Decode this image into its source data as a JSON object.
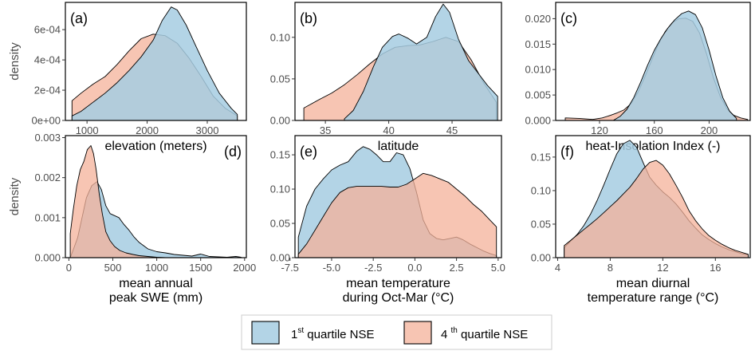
{
  "colors": {
    "q1": "#a6cde2",
    "q4": "#f4b29a",
    "q1_alpha": 0.85,
    "q4_alpha": 0.75,
    "frame": "#000000"
  },
  "legend": {
    "items": [
      {
        "key": "q1",
        "sup": "st",
        "pre": "1",
        "post": " quartile NSE"
      },
      {
        "key": "q4",
        "sup": "th",
        "pre": "4 ",
        "post": " quartile NSE"
      }
    ],
    "placement": "bottom-center"
  },
  "chart_data": [
    {
      "type": "area",
      "panel": "(a)",
      "xlabel": [
        "elevation (meters)"
      ],
      "ylabel": "density",
      "xlim": [
        640,
        3650
      ],
      "ylim": [
        0,
        0.00078
      ],
      "xticks": [
        1000,
        2000,
        3000
      ],
      "xticklabels": [
        "1000",
        "2000",
        "3000"
      ],
      "yticks": [
        0,
        0.0002,
        0.0004,
        0.0006
      ],
      "yticklabels": [
        "0e+00",
        "2e-04",
        "4e-04",
        "6e-04"
      ],
      "series": [
        {
          "key": "q4",
          "x": [
            750,
            900,
            1100,
            1300,
            1500,
            1700,
            1900,
            2100,
            2300,
            2500,
            2700,
            2900,
            3100,
            3300,
            3500
          ],
          "y": [
            0.00013,
            0.00018,
            0.00024,
            0.00029,
            0.00037,
            0.00046,
            0.00054,
            0.00057,
            0.00056,
            0.00051,
            0.00041,
            0.00029,
            0.00016,
            8e-05,
            3e-05
          ]
        },
        {
          "key": "q1",
          "x": [
            750,
            900,
            1100,
            1300,
            1500,
            1700,
            1900,
            2100,
            2250,
            2400,
            2500,
            2650,
            2800,
            3000,
            3200,
            3400,
            3500
          ],
          "y": [
            3e-05,
            6e-05,
            0.00012,
            0.00018,
            0.00025,
            0.00033,
            0.00042,
            0.00053,
            0.00066,
            0.00075,
            0.00073,
            0.00063,
            0.0005,
            0.00033,
            0.00018,
            8e-05,
            4e-05
          ]
        }
      ]
    },
    {
      "type": "area",
      "panel": "(b)",
      "xlabel": [
        "latitude"
      ],
      "ylabel": "",
      "xlim": [
        32.6,
        48.9
      ],
      "ylim": [
        0,
        0.142
      ],
      "xticks": [
        35,
        40,
        45
      ],
      "xticklabels": [
        "35",
        "40",
        "45"
      ],
      "yticks": [
        0,
        0.05,
        0.1
      ],
      "yticklabels": [
        "0.00",
        "0.05",
        "0.10"
      ],
      "series": [
        {
          "key": "q4",
          "x": [
            33.3,
            34.5,
            35.5,
            36.5,
            37.5,
            38.5,
            39.5,
            40.5,
            41.5,
            42.5,
            43.5,
            44.5,
            45.5,
            46.5,
            47.5,
            48.5
          ],
          "y": [
            0.015,
            0.025,
            0.033,
            0.043,
            0.055,
            0.068,
            0.08,
            0.088,
            0.09,
            0.091,
            0.095,
            0.1,
            0.095,
            0.073,
            0.045,
            0.022
          ]
        },
        {
          "key": "q1",
          "x": [
            36.5,
            37.2,
            38,
            38.8,
            39.5,
            40.3,
            40.8,
            41.5,
            42.2,
            43,
            43.7,
            44.3,
            44.8,
            45.5,
            46.3,
            47,
            47.8,
            48.6
          ],
          "y": [
            0.002,
            0.012,
            0.035,
            0.065,
            0.088,
            0.101,
            0.104,
            0.099,
            0.092,
            0.1,
            0.125,
            0.14,
            0.13,
            0.098,
            0.072,
            0.058,
            0.042,
            0.029
          ]
        }
      ]
    },
    {
      "type": "area",
      "panel": "(c)",
      "xlabel": [
        "heat-Insolation Index (-)"
      ],
      "ylabel": "",
      "xlim": [
        88,
        230
      ],
      "ylim": [
        0,
        0.0232
      ],
      "xticks": [
        120,
        160,
        200
      ],
      "xticklabels": [
        "120",
        "160",
        "200"
      ],
      "yticks": [
        0,
        0.005,
        0.01,
        0.015,
        0.02
      ],
      "yticklabels": [
        "0.000",
        "0.005",
        "0.010",
        "0.015",
        "0.020"
      ],
      "series": [
        {
          "key": "q4",
          "x": [
            95,
            105,
            115,
            122,
            128,
            133,
            138,
            143,
            148,
            153,
            158,
            163,
            168,
            173,
            178,
            183,
            188,
            193,
            198,
            203,
            208,
            213,
            218,
            223,
            228
          ],
          "y": [
            0.0005,
            0.0004,
            0.0002,
            0.0005,
            0.001,
            0.0015,
            0.0021,
            0.0033,
            0.0055,
            0.0085,
            0.0118,
            0.015,
            0.0175,
            0.0192,
            0.02,
            0.0201,
            0.0195,
            0.0172,
            0.0132,
            0.0085,
            0.0048,
            0.0023,
            0.001,
            0.0005,
            0.0002
          ]
        },
        {
          "key": "q1",
          "x": [
            130,
            135,
            140,
            145,
            150,
            155,
            160,
            165,
            170,
            175,
            180,
            185,
            190,
            195,
            200,
            205,
            210,
            215,
            220
          ],
          "y": [
            0,
            0.0008,
            0.0022,
            0.0045,
            0.0075,
            0.0108,
            0.0138,
            0.0162,
            0.0182,
            0.0198,
            0.021,
            0.0215,
            0.0208,
            0.0182,
            0.0138,
            0.0088,
            0.0045,
            0.0018,
            0.0004
          ]
        }
      ]
    },
    {
      "type": "area",
      "panel": "(d)",
      "xlabel": [
        "mean annual",
        "peak SWE  (mm)"
      ],
      "ylabel": "density",
      "xlim": [
        -40,
        2020
      ],
      "ylim": [
        0,
        0.00305
      ],
      "xticks": [
        0,
        500,
        1000,
        1500,
        2000
      ],
      "xticklabels": [
        "0",
        "500",
        "1000",
        "1500",
        "2000"
      ],
      "yticks": [
        0,
        0.001,
        0.002,
        0.003
      ],
      "yticklabels": [
        "0.000",
        "0.001",
        "0.002",
        "0.003"
      ],
      "series": [
        {
          "key": "q1",
          "x": [
            15,
            50,
            100,
            150,
            200,
            260,
            320,
            370,
            420,
            470,
            520,
            570,
            620,
            680,
            740,
            800,
            900,
            1000,
            1100,
            1200,
            1300,
            1400,
            1500,
            1600,
            1700,
            1800,
            1900,
            1960
          ],
          "y": [
            0,
            0.0002,
            0.0005,
            0.001,
            0.0015,
            0.0018,
            0.0019,
            0.0017,
            0.0013,
            0.0011,
            0.00105,
            0.001,
            0.00085,
            0.0007,
            0.00052,
            0.00038,
            0.00022,
            0.00015,
            0.00012,
            8e-05,
            6e-05,
            4e-05,
            9e-05,
            3e-05,
            2e-05,
            1e-05,
            3e-05,
            1e-05
          ]
        },
        {
          "key": "q4",
          "x": [
            15,
            50,
            90,
            130,
            170,
            210,
            250,
            280,
            310,
            345,
            380,
            420,
            470,
            520,
            580,
            650,
            730,
            800,
            900,
            1000,
            1100
          ],
          "y": [
            0.0006,
            0.0012,
            0.0018,
            0.0022,
            0.0024,
            0.0027,
            0.0028,
            0.0026,
            0.0022,
            0.0016,
            0.0011,
            0.00065,
            0.00042,
            0.00028,
            0.00018,
            0.00012,
            8e-05,
            5e-05,
            3e-05,
            1e-05,
            0
          ]
        }
      ]
    },
    {
      "type": "area",
      "panel": "(e)",
      "xlabel": [
        "mean temperature",
        "during Oct-Mar (°C)"
      ],
      "ylabel": "",
      "xlim": [
        -7.2,
        5.2
      ],
      "ylim": [
        0,
        0.178
      ],
      "xticks": [
        -7.5,
        -5,
        -2.5,
        0,
        2.5,
        5
      ],
      "xticklabels": [
        "-7.5",
        "-5.0",
        "-2.5",
        "0.0",
        "2.5",
        "5.0"
      ],
      "yticks": [
        0,
        0.05,
        0.1,
        0.15
      ],
      "yticklabels": [
        "0.00",
        "0.05",
        "0.10",
        "0.15"
      ],
      "series": [
        {
          "key": "q1",
          "x": [
            -7,
            -6.5,
            -6,
            -5.5,
            -5,
            -4.5,
            -4,
            -3.5,
            -3.1,
            -2.7,
            -2.3,
            -1.9,
            -1.5,
            -1.1,
            -0.7,
            -0.3,
            0.1,
            0.5,
            0.9,
            1.3,
            1.7,
            2.1,
            2.5,
            2.9,
            3.3,
            3.7,
            4.1,
            4.5,
            4.9
          ],
          "y": [
            0.03,
            0.075,
            0.1,
            0.115,
            0.128,
            0.135,
            0.14,
            0.155,
            0.162,
            0.158,
            0.15,
            0.14,
            0.14,
            0.153,
            0.15,
            0.13,
            0.095,
            0.055,
            0.035,
            0.028,
            0.026,
            0.028,
            0.03,
            0.026,
            0.02,
            0.015,
            0.01,
            0.006,
            0.003
          ]
        },
        {
          "key": "q4",
          "x": [
            -7,
            -6.5,
            -6,
            -5.5,
            -5,
            -4.5,
            -4,
            -3.5,
            -3,
            -2.5,
            -2,
            -1.5,
            -1,
            -0.5,
            0,
            0.5,
            1,
            1.5,
            2,
            2.5,
            3,
            3.5,
            4,
            4.5,
            4.9
          ],
          "y": [
            0.005,
            0.02,
            0.04,
            0.06,
            0.08,
            0.095,
            0.102,
            0.104,
            0.104,
            0.104,
            0.104,
            0.103,
            0.103,
            0.107,
            0.115,
            0.123,
            0.12,
            0.115,
            0.11,
            0.1,
            0.09,
            0.078,
            0.068,
            0.055,
            0.045
          ]
        }
      ]
    },
    {
      "type": "area",
      "panel": "(f)",
      "xlabel": [
        "mean diurnal",
        "temperature range (°C)"
      ],
      "ylabel": "",
      "xlim": [
        3.85,
        18.65
      ],
      "ylim": [
        0,
        0.182
      ],
      "xticks": [
        4,
        8,
        12,
        16
      ],
      "xticklabels": [
        "4",
        "8",
        "12",
        "16"
      ],
      "yticks": [
        0,
        0.05,
        0.1,
        0.15
      ],
      "yticklabels": [
        "0.00",
        "0.05",
        "0.10",
        "0.15"
      ],
      "series": [
        {
          "key": "q1",
          "x": [
            4.5,
            5,
            5.5,
            6,
            6.5,
            7,
            7.5,
            8,
            8.5,
            9,
            9.5,
            10,
            10.5,
            11,
            11.5,
            12,
            12.5,
            13,
            13.5,
            14,
            14.5,
            15,
            15.5,
            16,
            16.5,
            17,
            17.5,
            18,
            18.5
          ],
          "y": [
            0.015,
            0.025,
            0.035,
            0.048,
            0.065,
            0.085,
            0.108,
            0.132,
            0.155,
            0.17,
            0.175,
            0.165,
            0.142,
            0.12,
            0.108,
            0.098,
            0.09,
            0.08,
            0.068,
            0.055,
            0.044,
            0.034,
            0.027,
            0.021,
            0.016,
            0.012,
            0.009,
            0.006,
            0.004
          ]
        },
        {
          "key": "q4",
          "x": [
            4.5,
            5,
            5.5,
            6,
            6.5,
            7,
            7.5,
            8,
            8.5,
            9,
            9.5,
            10,
            10.5,
            11,
            11.5,
            12,
            12.5,
            13,
            13.5,
            14,
            14.5,
            15,
            15.5,
            16,
            16.5,
            17,
            17.5,
            18,
            18.5
          ],
          "y": [
            0.018,
            0.026,
            0.034,
            0.042,
            0.05,
            0.058,
            0.067,
            0.076,
            0.085,
            0.095,
            0.105,
            0.118,
            0.132,
            0.142,
            0.145,
            0.138,
            0.125,
            0.108,
            0.09,
            0.07,
            0.055,
            0.043,
            0.033,
            0.026,
            0.02,
            0.015,
            0.011,
            0.008,
            0.005
          ]
        }
      ]
    }
  ]
}
